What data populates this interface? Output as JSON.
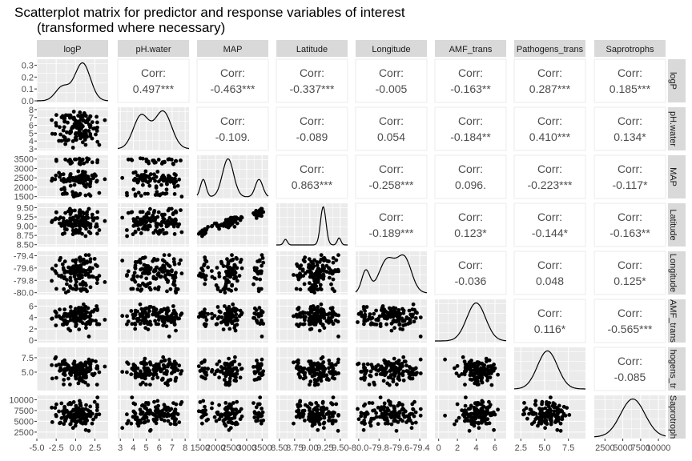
{
  "chart_data": {
    "type": "scatter",
    "title": "Scatterplot matrix for predictor and response variables of interest",
    "subtitle": "(transformed where necessary)",
    "variables": [
      "logP",
      "pH.water",
      "MAP",
      "Latitude",
      "Longitude",
      "AMF_trans",
      "Pathogens_trans",
      "Saprotrophs"
    ],
    "row_strip_labels": [
      "logP",
      "pH.water",
      "MAP",
      "Latitude",
      "Longitude",
      "AMF_trans",
      "hogens_tr",
      "Saprotroph"
    ],
    "corr_label": "Corr:",
    "correlations": [
      {
        "row": 0,
        "col": 1,
        "text": "0.497***"
      },
      {
        "row": 0,
        "col": 2,
        "text": "-0.463***"
      },
      {
        "row": 0,
        "col": 3,
        "text": "-0.337***"
      },
      {
        "row": 0,
        "col": 4,
        "text": "-0.005"
      },
      {
        "row": 0,
        "col": 5,
        "text": "-0.163**"
      },
      {
        "row": 0,
        "col": 6,
        "text": "0.287***"
      },
      {
        "row": 0,
        "col": 7,
        "text": "0.185***"
      },
      {
        "row": 1,
        "col": 2,
        "text": "-0.109."
      },
      {
        "row": 1,
        "col": 3,
        "text": "-0.089"
      },
      {
        "row": 1,
        "col": 4,
        "text": "0.054"
      },
      {
        "row": 1,
        "col": 5,
        "text": "-0.184**"
      },
      {
        "row": 1,
        "col": 6,
        "text": "0.410***"
      },
      {
        "row": 1,
        "col": 7,
        "text": "0.134*"
      },
      {
        "row": 2,
        "col": 3,
        "text": "0.863***"
      },
      {
        "row": 2,
        "col": 4,
        "text": "-0.258***"
      },
      {
        "row": 2,
        "col": 5,
        "text": "0.096."
      },
      {
        "row": 2,
        "col": 6,
        "text": "-0.223***"
      },
      {
        "row": 2,
        "col": 7,
        "text": "-0.117*"
      },
      {
        "row": 3,
        "col": 4,
        "text": "-0.189***"
      },
      {
        "row": 3,
        "col": 5,
        "text": "0.123*"
      },
      {
        "row": 3,
        "col": 6,
        "text": "-0.144*"
      },
      {
        "row": 3,
        "col": 7,
        "text": "-0.163**"
      },
      {
        "row": 4,
        "col": 5,
        "text": "-0.036"
      },
      {
        "row": 4,
        "col": 6,
        "text": "0.048"
      },
      {
        "row": 4,
        "col": 7,
        "text": "0.125*"
      },
      {
        "row": 5,
        "col": 6,
        "text": "0.116*"
      },
      {
        "row": 5,
        "col": 7,
        "text": "-0.565***"
      },
      {
        "row": 6,
        "col": 7,
        "text": "-0.085"
      }
    ],
    "x_ticks": [
      [
        "-5.0",
        "-2.5",
        "0.0",
        "2.5"
      ],
      [
        "3",
        "4",
        "5",
        "6",
        "7",
        "8"
      ],
      [
        "1500",
        "2000",
        "2500",
        "3000",
        "3500"
      ],
      [
        "8.50",
        "8.75",
        "9.00",
        "9.25",
        "9.50"
      ],
      [
        "-80.0",
        "-79.8",
        "-79.6",
        "-79.4"
      ],
      [
        "0",
        "2",
        "4",
        "6"
      ],
      [
        "2.5",
        "5.0",
        "7.5"
      ],
      [
        "2500",
        "5000",
        "7500",
        "10000"
      ]
    ],
    "y_ticks": [
      [
        "0.0",
        "0.1",
        "0.2",
        "0.3"
      ],
      [
        "3",
        "4",
        "5",
        "6",
        "7",
        "8"
      ],
      [
        "1500",
        "2000",
        "2500",
        "3000",
        "3500"
      ],
      [
        "8.50",
        "8.75",
        "9.00",
        "9.25",
        "9.50"
      ],
      [
        "-80.0",
        "-79.8",
        "-79.6",
        "-79.4"
      ],
      [
        "0",
        "2",
        "4",
        "6"
      ],
      [
        "5.0",
        "7.5"
      ],
      [
        "2500",
        "5000",
        "7500",
        "10000"
      ]
    ],
    "axis_ranges": [
      [
        -5.0,
        4.2
      ],
      [
        2.8,
        8.3
      ],
      [
        1400,
        3700
      ],
      [
        8.45,
        9.62
      ],
      [
        -80.03,
        -79.33
      ],
      [
        -0.4,
        7.2
      ],
      [
        1.8,
        9.3
      ],
      [
        1000,
        11000
      ]
    ],
    "density_ylim": [
      0,
      0.32
    ],
    "density_peaks": [
      {
        "var": "logP",
        "centers": [
          -1.7,
          0.9
        ],
        "sds": [
          0.9,
          1.0
        ],
        "weights": [
          0.25,
          0.75
        ]
      },
      {
        "var": "pH.water",
        "centers": [
          4.6,
          6.3
        ],
        "sds": [
          0.6,
          0.65
        ],
        "weights": [
          0.45,
          0.55
        ]
      },
      {
        "var": "MAP",
        "centers": [
          1600,
          2400,
          3400
        ],
        "sds": [
          90,
          180,
          120
        ],
        "weights": [
          0.15,
          0.65,
          0.2
        ]
      },
      {
        "var": "Latitude",
        "centers": [
          8.6,
          9.22,
          9.48
        ],
        "sds": [
          0.03,
          0.045,
          0.03
        ],
        "weights": [
          0.08,
          0.82,
          0.1
        ]
      },
      {
        "var": "Longitude",
        "centers": [
          -79.93,
          -79.72,
          -79.55
        ],
        "sds": [
          0.04,
          0.08,
          0.07
        ],
        "weights": [
          0.15,
          0.45,
          0.4
        ]
      },
      {
        "var": "AMF_trans",
        "centers": [
          4.0
        ],
        "sds": [
          1.0
        ],
        "weights": [
          1.0
        ]
      },
      {
        "var": "Pathogens_trans",
        "centers": [
          5.3
        ],
        "sds": [
          1.05
        ],
        "weights": [
          1.0
        ]
      },
      {
        "var": "Saprotrophs",
        "centers": [
          6400
        ],
        "sds": [
          1700
        ],
        "weights": [
          1.0
        ]
      }
    ],
    "grid": true,
    "point_color": "#000000",
    "panel_background": "#ebebeb",
    "strip_background": "#d9d9d9",
    "grid_color": "#ffffff"
  }
}
